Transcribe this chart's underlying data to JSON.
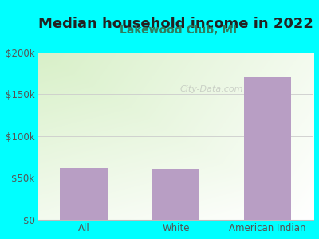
{
  "title": "Median household income in 2022",
  "subtitle": "Lakewood Club, MI",
  "categories": [
    "All",
    "White",
    "American Indian"
  ],
  "values": [
    62000,
    61000,
    170000
  ],
  "bar_color": "#b89ec4",
  "background_color": "#00FFFF",
  "plot_bg_color_top_left": "#d8f0c8",
  "plot_bg_color_bottom_right": "#ffffff",
  "title_color": "#222222",
  "subtitle_color": "#2e7d5e",
  "tick_color": "#555555",
  "ymax": 200000,
  "yticks": [
    0,
    50000,
    100000,
    150000,
    200000
  ],
  "ytick_labels": [
    "$0",
    "$50k",
    "$100k",
    "$150k",
    "$200k"
  ],
  "watermark": "City-Data.com",
  "title_fontsize": 13,
  "subtitle_fontsize": 10,
  "grid_color": "#cccccc",
  "bar_width": 0.52
}
